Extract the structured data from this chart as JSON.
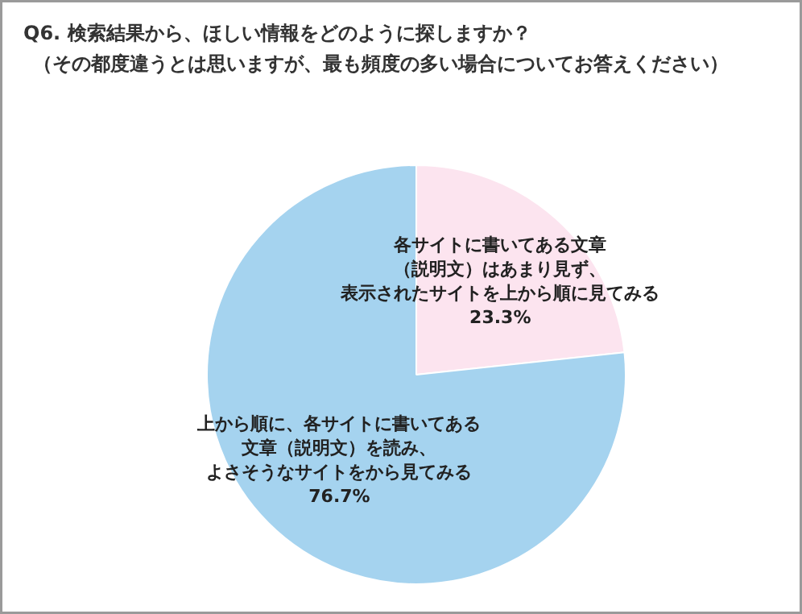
{
  "chart_data": {
    "type": "pie",
    "title": "Q6. 検索結果から、ほしい情報をどのように探しますか？（その都度違うとは思いますが、最も頻度の多い場合についてお答えください）",
    "categories": [
      "各サイトに書いてある文章（説明文）はあまり見ず、表示されたサイトを上から順に見てみる",
      "上から順に、各サイトに書いてある文章（説明文）を読み、よさそうなサイトをから見てみる"
    ],
    "values": [
      23.3,
      76.7
    ],
    "colors": [
      "#fce4ef",
      "#a5d3ef"
    ],
    "value_labels": [
      "23.3%",
      "76.7%"
    ]
  }
}
